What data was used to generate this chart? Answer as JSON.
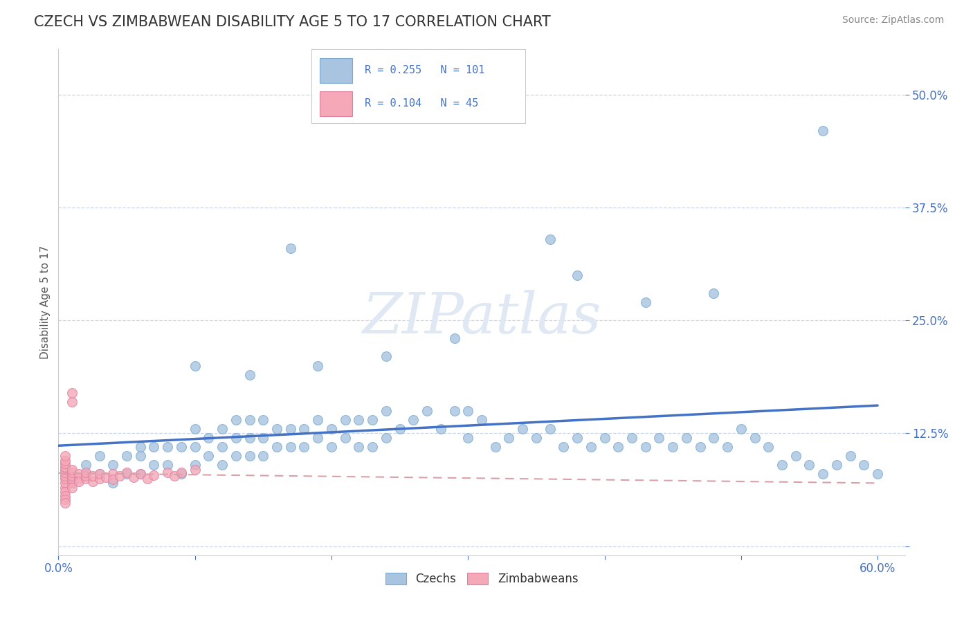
{
  "title": "CZECH VS ZIMBABWEAN DISABILITY AGE 5 TO 17 CORRELATION CHART",
  "source": "Source: ZipAtlas.com",
  "ylabel_label": "Disability Age 5 to 17",
  "xlim": [
    0.0,
    0.62
  ],
  "ylim": [
    -0.01,
    0.55
  ],
  "xtick_positions": [
    0.0,
    0.1,
    0.2,
    0.3,
    0.4,
    0.5,
    0.6
  ],
  "xticklabels": [
    "0.0%",
    "",
    "",
    "",
    "",
    "",
    "60.0%"
  ],
  "ytick_positions": [
    0.0,
    0.125,
    0.25,
    0.375,
    0.5
  ],
  "yticklabels": [
    "",
    "12.5%",
    "25.0%",
    "37.5%",
    "50.0%"
  ],
  "czech_R": 0.255,
  "czech_N": 101,
  "zimb_R": 0.104,
  "zimb_N": 45,
  "czech_color": "#a8c4e0",
  "zimb_color": "#f4a8b8",
  "trendline_czech_color": "#4472c4",
  "trendline_zimb_color": "#d9a0a8",
  "background_color": "#ffffff",
  "grid_color": "#c8d4e8",
  "watermark_color": "#e0e8f4"
}
